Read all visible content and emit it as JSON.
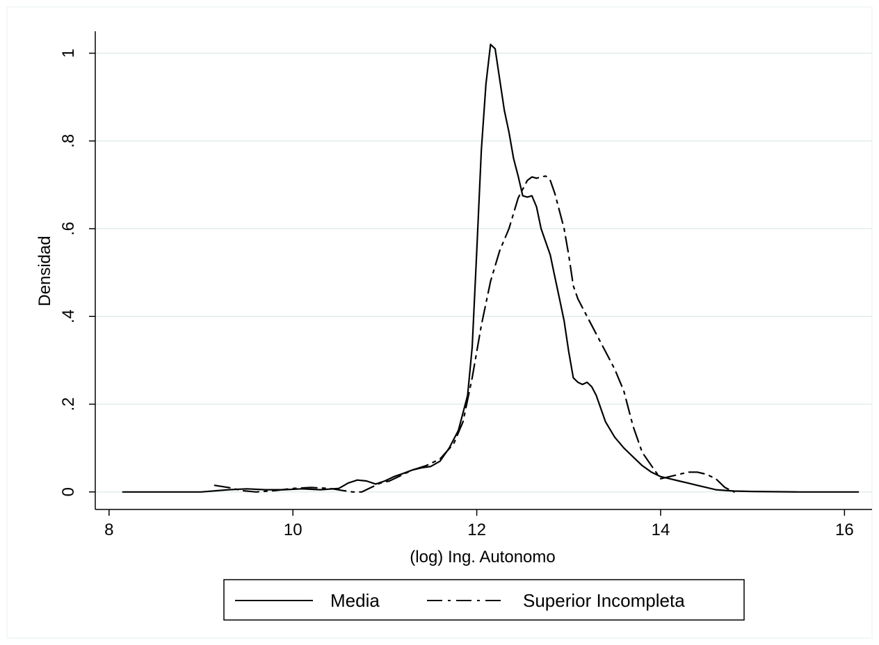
{
  "chart_data": {
    "type": "line",
    "title": "",
    "xlabel": "(log) Ing. Autonomo",
    "ylabel": "Densidad",
    "xlim": [
      7.85,
      16.3
    ],
    "ylim": [
      -0.04,
      1.05
    ],
    "xticks": [
      8,
      10,
      12,
      14,
      16
    ],
    "xtick_labels": [
      "8",
      "10",
      "12",
      "14",
      "16"
    ],
    "yticks": [
      0,
      0.2,
      0.4,
      0.6,
      0.8,
      1
    ],
    "ytick_labels": [
      "0",
      ".2",
      ".4",
      ".6",
      ".8",
      "1"
    ],
    "grid": true,
    "legend_position": "bottom",
    "colors": {
      "background": "#ffffff",
      "grid": "#e0ebeb",
      "line": "#000000"
    },
    "series": [
      {
        "name": "Media",
        "style": "solid",
        "x": [
          8.15,
          8.6,
          9.0,
          9.3,
          9.5,
          9.7,
          9.9,
          10.1,
          10.3,
          10.5,
          10.6,
          10.7,
          10.8,
          10.9,
          11.0,
          11.1,
          11.2,
          11.3,
          11.4,
          11.5,
          11.6,
          11.7,
          11.8,
          11.9,
          11.95,
          12.0,
          12.05,
          12.1,
          12.15,
          12.2,
          12.25,
          12.3,
          12.35,
          12.4,
          12.45,
          12.5,
          12.55,
          12.6,
          12.65,
          12.7,
          12.75,
          12.8,
          12.85,
          12.9,
          12.95,
          13.0,
          13.05,
          13.1,
          13.15,
          13.2,
          13.25,
          13.3,
          13.35,
          13.4,
          13.5,
          13.6,
          13.7,
          13.8,
          13.9,
          14.0,
          14.1,
          14.2,
          14.3,
          14.4,
          14.5,
          14.6,
          14.8,
          15.0,
          15.5,
          16.0,
          16.15
        ],
        "y": [
          0.0,
          0.0,
          0.0,
          0.005,
          0.007,
          0.005,
          0.005,
          0.007,
          0.005,
          0.008,
          0.02,
          0.027,
          0.025,
          0.018,
          0.025,
          0.035,
          0.042,
          0.05,
          0.055,
          0.058,
          0.07,
          0.1,
          0.14,
          0.22,
          0.33,
          0.55,
          0.78,
          0.93,
          1.02,
          1.01,
          0.94,
          0.87,
          0.82,
          0.76,
          0.72,
          0.675,
          0.672,
          0.675,
          0.65,
          0.6,
          0.57,
          0.54,
          0.49,
          0.44,
          0.39,
          0.32,
          0.26,
          0.25,
          0.245,
          0.25,
          0.24,
          0.22,
          0.19,
          0.16,
          0.125,
          0.1,
          0.08,
          0.06,
          0.045,
          0.035,
          0.03,
          0.025,
          0.02,
          0.015,
          0.01,
          0.005,
          0.002,
          0.001,
          0.0,
          0.0,
          0.0
        ]
      },
      {
        "name": "Superior Incompleta",
        "style": "dash-dot",
        "x": [
          9.15,
          9.3,
          9.45,
          9.6,
          9.8,
          10.0,
          10.2,
          10.4,
          10.55,
          10.65,
          10.75,
          10.85,
          10.95,
          11.05,
          11.15,
          11.3,
          11.45,
          11.6,
          11.75,
          11.85,
          11.95,
          12.05,
          12.15,
          12.25,
          12.35,
          12.45,
          12.55,
          12.6,
          12.65,
          12.7,
          12.75,
          12.8,
          12.85,
          12.9,
          12.95,
          13.0,
          13.05,
          13.1,
          13.2,
          13.3,
          13.4,
          13.5,
          13.6,
          13.7,
          13.8,
          13.9,
          14.0,
          14.1,
          14.2,
          14.3,
          14.4,
          14.5,
          14.6,
          14.7,
          14.8
        ],
        "y": [
          0.015,
          0.01,
          0.003,
          0.0,
          0.003,
          0.008,
          0.01,
          0.008,
          0.003,
          0.0,
          0.0,
          0.01,
          0.02,
          0.025,
          0.035,
          0.05,
          0.06,
          0.075,
          0.11,
          0.16,
          0.26,
          0.38,
          0.48,
          0.55,
          0.6,
          0.67,
          0.71,
          0.718,
          0.715,
          0.718,
          0.72,
          0.71,
          0.68,
          0.64,
          0.6,
          0.54,
          0.47,
          0.44,
          0.4,
          0.36,
          0.32,
          0.28,
          0.23,
          0.15,
          0.09,
          0.06,
          0.03,
          0.035,
          0.04,
          0.045,
          0.045,
          0.04,
          0.03,
          0.01,
          0.0
        ]
      }
    ]
  }
}
